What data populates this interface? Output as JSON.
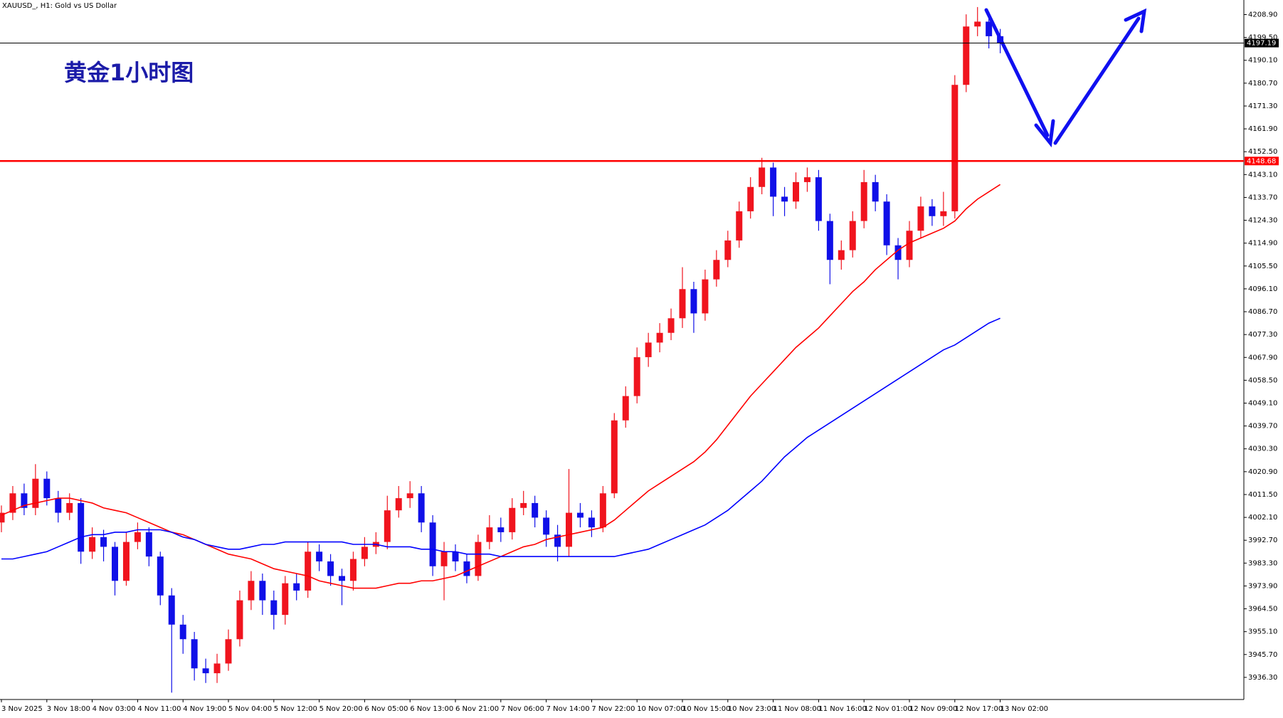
{
  "chart_data": {
    "type": "candlestick",
    "title": "XAUUSD_, H1:  Gold vs US Dollar",
    "annotation": "黄金1小时图",
    "categories": [
      "3 Nov 2025",
      null,
      null,
      null,
      "3 Nov 18:00",
      null,
      null,
      null,
      "4 Nov 03:00",
      null,
      null,
      null,
      "4 Nov 11:00",
      null,
      null,
      null,
      "4 Nov 19:00",
      null,
      null,
      null,
      "5 Nov 04:00",
      null,
      null,
      null,
      "5 Nov 12:00",
      null,
      null,
      null,
      "5 Nov 20:00",
      null,
      null,
      null,
      "6 Nov 05:00",
      null,
      null,
      null,
      "6 Nov 13:00",
      null,
      null,
      null,
      "6 Nov 21:00",
      null,
      null,
      null,
      "7 Nov 06:00",
      null,
      null,
      null,
      "7 Nov 14:00",
      null,
      null,
      null,
      "7 Nov 22:00",
      null,
      null,
      null,
      "10 Nov 07:00",
      null,
      null,
      null,
      "10 Nov 15:00",
      null,
      null,
      null,
      "10 Nov 23:00",
      null,
      null,
      null,
      "11 Nov 08:00",
      null,
      null,
      null,
      "11 Nov 16:00",
      null,
      null,
      null,
      "12 Nov 01:00",
      null,
      null,
      null,
      "12 Nov 09:00",
      null,
      null,
      null,
      "12 Nov 17:00",
      null,
      null,
      null,
      "13 Nov 02:00"
    ],
    "open": [
      4000,
      4004,
      4012,
      4006,
      4018,
      4010,
      4004,
      4008,
      3988,
      3994,
      3990,
      3976,
      3992,
      3996,
      3986,
      3970,
      3958,
      3952,
      3940,
      3938,
      3942,
      3952,
      3968,
      3976,
      3968,
      3962,
      3975,
      3972,
      3988,
      3984,
      3978,
      3976,
      3985,
      3990,
      3992,
      4005,
      4010,
      4012,
      4000,
      3982,
      3988,
      3984,
      3978,
      3992,
      3998,
      3996,
      4006,
      4008,
      4002,
      3995,
      3990,
      4004,
      4002,
      3998,
      4012,
      4042,
      4052,
      4068,
      4074,
      4078,
      4084,
      4096,
      4086,
      4100,
      4108,
      4116,
      4128,
      4138,
      4146,
      4134,
      4132,
      4140,
      4142,
      4124,
      4108,
      4112,
      4124,
      4140,
      4132,
      4114,
      4108,
      4120,
      4130,
      4126,
      4128,
      4180,
      4204,
      4206,
      4200
    ],
    "high": [
      4007,
      4015,
      4016,
      4024,
      4021,
      4013,
      4012,
      4010,
      3998,
      3997,
      3992,
      3996,
      4000,
      3998,
      3988,
      3973,
      3962,
      3955,
      3944,
      3946,
      3956,
      3972,
      3980,
      3979,
      3972,
      3978,
      3979,
      3992,
      3991,
      3987,
      3981,
      3988,
      3994,
      3996,
      4011,
      4015,
      4017,
      4015,
      4003,
      3992,
      3991,
      3987,
      3995,
      4003,
      4002,
      4010,
      4013,
      4011,
      4005,
      3999,
      4022,
      4008,
      4005,
      4015,
      4045,
      4056,
      4072,
      4078,
      4082,
      4088,
      4105,
      4099,
      4104,
      4112,
      4120,
      4132,
      4142,
      4150,
      4148,
      4138,
      4144,
      4146,
      4145,
      4127,
      4116,
      4128,
      4145,
      4143,
      4135,
      4117,
      4124,
      4134,
      4133,
      4136,
      4184,
      4209,
      4212,
      4210,
      4203
    ],
    "low": [
      3996,
      4001,
      4003,
      4003,
      4007,
      4000,
      4001,
      3983,
      3985,
      3984,
      3970,
      3974,
      3989,
      3982,
      3966,
      3930,
      3946,
      3935,
      3934,
      3934,
      3939,
      3949,
      3964,
      3962,
      3956,
      3958,
      3968,
      3969,
      3980,
      3974,
      3966,
      3972,
      3982,
      3987,
      3989,
      4002,
      4006,
      3996,
      3978,
      3968,
      3980,
      3975,
      3976,
      3989,
      3992,
      3993,
      4003,
      3998,
      3990,
      3984,
      3986,
      3998,
      3994,
      3996,
      4010,
      4039,
      4049,
      4064,
      4070,
      4075,
      4080,
      4078,
      4083,
      4097,
      4105,
      4113,
      4125,
      4135,
      4126,
      4126,
      4129,
      4136,
      4120,
      4098,
      4104,
      4109,
      4121,
      4128,
      4110,
      4100,
      4105,
      4117,
      4122,
      4122,
      4125,
      4177,
      4200,
      4195,
      4193
    ],
    "close": [
      4004,
      4012,
      4006,
      4018,
      4010,
      4004,
      4008,
      3988,
      3994,
      3990,
      3976,
      3992,
      3996,
      3986,
      3970,
      3958,
      3952,
      3940,
      3938,
      3942,
      3952,
      3968,
      3976,
      3968,
      3962,
      3975,
      3972,
      3988,
      3984,
      3978,
      3976,
      3985,
      3990,
      3992,
      4005,
      4010,
      4012,
      4000,
      3982,
      3988,
      3984,
      3978,
      3992,
      3998,
      3996,
      4006,
      4008,
      4002,
      3995,
      3990,
      4004,
      4002,
      3998,
      4012,
      4042,
      4052,
      4068,
      4074,
      4078,
      4084,
      4096,
      4086,
      4100,
      4108,
      4116,
      4128,
      4138,
      4146,
      4134,
      4132,
      4140,
      4142,
      4124,
      4108,
      4112,
      4124,
      4140,
      4132,
      4114,
      4108,
      4120,
      4130,
      4126,
      4128,
      4180,
      4204,
      4206,
      4200,
      4197.19
    ],
    "up_color": "#f0141e",
    "down_color": "#1010e8",
    "moving_averages": [
      {
        "color": "#ff0000",
        "values": [
          4003,
          4005,
          4007,
          4008,
          4009,
          4010,
          4010,
          4009,
          4008,
          4006,
          4005,
          4004,
          4002,
          4000,
          3998,
          3996,
          3995,
          3993,
          3991,
          3989,
          3987,
          3986,
          3985,
          3983,
          3981,
          3980,
          3979,
          3978,
          3976,
          3975,
          3974,
          3973,
          3973,
          3973,
          3974,
          3975,
          3975,
          3976,
          3976,
          3977,
          3978,
          3980,
          3982,
          3984,
          3986,
          3988,
          3990,
          3991,
          3993,
          3994,
          3995,
          3996,
          3997,
          3998,
          4001,
          4005,
          4009,
          4013,
          4016,
          4019,
          4022,
          4025,
          4029,
          4034,
          4040,
          4046,
          4052,
          4057,
          4062,
          4067,
          4072,
          4076,
          4080,
          4085,
          4090,
          4095,
          4099,
          4104,
          4108,
          4112,
          4115,
          4117,
          4119,
          4121,
          4124,
          4129,
          4133,
          4136,
          4139
        ]
      },
      {
        "color": "#0000ff",
        "values": [
          3985,
          3985,
          3986,
          3987,
          3988,
          3990,
          3992,
          3994,
          3995,
          3995,
          3996,
          3996,
          3997,
          3997,
          3997,
          3996,
          3994,
          3993,
          3991,
          3990,
          3989,
          3989,
          3990,
          3991,
          3991,
          3992,
          3992,
          3992,
          3992,
          3992,
          3992,
          3991,
          3991,
          3991,
          3990,
          3990,
          3990,
          3989,
          3989,
          3988,
          3988,
          3987,
          3987,
          3987,
          3986,
          3986,
          3986,
          3986,
          3986,
          3986,
          3986,
          3986,
          3986,
          3986,
          3986,
          3987,
          3988,
          3989,
          3991,
          3993,
          3995,
          3997,
          3999,
          4002,
          4005,
          4009,
          4013,
          4017,
          4022,
          4027,
          4031,
          4035,
          4038,
          4041,
          4044,
          4047,
          4050,
          4053,
          4056,
          4059,
          4062,
          4065,
          4068,
          4071,
          4073,
          4076,
          4079,
          4082,
          4084
        ]
      }
    ],
    "level_line": {
      "value": 4148.68,
      "color": "#ff0000"
    },
    "current_price": 4197.19,
    "ylim": [
      3927.2,
      4214.9
    ],
    "yticks": [
      {
        "value": 4208.9,
        "label": "4208.90"
      },
      {
        "value": 4199.5,
        "label": "4199.50"
      },
      {
        "value": 4190.1,
        "label": "4190.10"
      },
      {
        "value": 4180.7,
        "label": "4180.70"
      },
      {
        "value": 4171.3,
        "label": "4171.30"
      },
      {
        "value": 4161.9,
        "label": "4161.90"
      },
      {
        "value": 4152.5,
        "label": "4152.50"
      },
      {
        "value": 4143.1,
        "label": "4143.10"
      },
      {
        "value": 4133.7,
        "label": "4133.70"
      },
      {
        "value": 4124.3,
        "label": "4124.30"
      },
      {
        "value": 4114.9,
        "label": "4114.90"
      },
      {
        "value": 4105.5,
        "label": "4105.50"
      },
      {
        "value": 4096.1,
        "label": "4096.10"
      },
      {
        "value": 4086.7,
        "label": "4086.70"
      },
      {
        "value": 4077.3,
        "label": "4077.30"
      },
      {
        "value": 4067.9,
        "label": "4067.90"
      },
      {
        "value": 4058.5,
        "label": "4058.50"
      },
      {
        "value": 4049.1,
        "label": "4049.10"
      },
      {
        "value": 4039.7,
        "label": "4039.70"
      },
      {
        "value": 4030.3,
        "label": "4030.30"
      },
      {
        "value": 4020.9,
        "label": "4020.90"
      },
      {
        "value": 4011.5,
        "label": "4011.50"
      },
      {
        "value": 4002.1,
        "label": "4002.10"
      },
      {
        "value": 3992.7,
        "label": "3992.70"
      },
      {
        "value": 3983.3,
        "label": "3983.30"
      },
      {
        "value": 3973.9,
        "label": "3973.90"
      },
      {
        "value": 3964.5,
        "label": "3964.50"
      },
      {
        "value": 3955.1,
        "label": "3955.10"
      },
      {
        "value": 3945.7,
        "label": "3945.70"
      },
      {
        "value": 3936.3,
        "label": "3936.30"
      }
    ],
    "grid": false
  }
}
